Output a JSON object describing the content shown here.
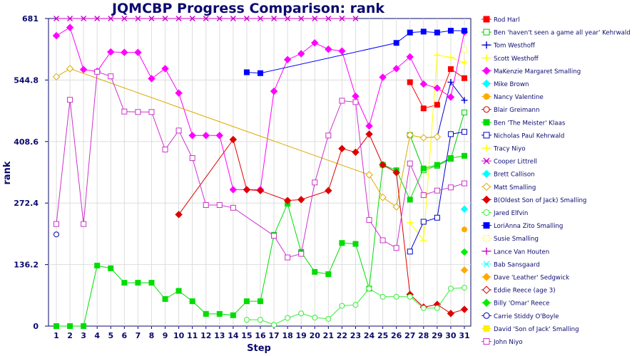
{
  "chart_data": {
    "type": "line",
    "title": "JQMCBP Progress Comparison: rank",
    "xlabel": "Step",
    "ylabel": "rank",
    "x": [
      1,
      2,
      3,
      4,
      5,
      6,
      7,
      8,
      9,
      10,
      11,
      12,
      13,
      14,
      15,
      16,
      17,
      18,
      19,
      20,
      21,
      22,
      23,
      24,
      25,
      26,
      27,
      28,
      29,
      30,
      31
    ],
    "x_ticks": [
      "1",
      "2",
      "3",
      "4",
      "5",
      "6",
      "7",
      "8",
      "9",
      "10",
      "11",
      "12",
      "13",
      "14",
      "15",
      "16",
      "17",
      "18",
      "19",
      "20",
      "21",
      "22",
      "23",
      "24",
      "25",
      "26",
      "27",
      "28",
      "29",
      "30",
      "31"
    ],
    "ylim": [
      0,
      681
    ],
    "y_ticks": [
      "0",
      "136.2",
      "272.4",
      "408.6",
      "544.8",
      "681"
    ],
    "grid": true,
    "legend_position": "right",
    "series": [
      {
        "name": "Rod Harl",
        "color": "#ff0000",
        "marker": "square-filled",
        "values": [
          null,
          null,
          null,
          null,
          null,
          null,
          null,
          null,
          null,
          null,
          null,
          null,
          null,
          null,
          null,
          null,
          null,
          null,
          null,
          null,
          null,
          null,
          null,
          null,
          null,
          null,
          540,
          482,
          490,
          569,
          549
        ]
      },
      {
        "name": "Ben 'haven't seen a game all year' Kehrwald",
        "color": "#00cc00",
        "marker": "square-open",
        "values": [
          null,
          null,
          null,
          null,
          null,
          null,
          null,
          null,
          null,
          null,
          null,
          null,
          null,
          null,
          null,
          null,
          null,
          null,
          null,
          null,
          null,
          null,
          null,
          null,
          null,
          null,
          423,
          345,
          355,
          370,
          473
        ]
      },
      {
        "name": "Tom Westhoff",
        "color": "#0000cc",
        "marker": "plus",
        "values": [
          null,
          null,
          null,
          null,
          null,
          null,
          null,
          null,
          null,
          null,
          null,
          null,
          null,
          null,
          null,
          null,
          null,
          null,
          null,
          null,
          null,
          null,
          null,
          null,
          null,
          null,
          null,
          417,
          419,
          540,
          500
        ]
      },
      {
        "name": "Scott Westhoff",
        "color": "#ffff00",
        "marker": "plus",
        "values": [
          null,
          null,
          null,
          null,
          null,
          null,
          null,
          null,
          null,
          null,
          null,
          null,
          null,
          null,
          null,
          null,
          null,
          null,
          null,
          null,
          null,
          null,
          null,
          null,
          null,
          null,
          229,
          190,
          600,
          595,
          583
        ]
      },
      {
        "name": "MaKenzie Margaret Smalling",
        "color": "#ff00ff",
        "marker": "diamond-filled",
        "values": [
          643,
          661,
          568,
          564,
          607,
          606,
          606,
          548,
          570,
          516,
          422,
          422,
          422,
          302,
          302,
          302,
          520,
          590,
          603,
          627,
          613,
          609,
          509,
          443,
          551,
          570,
          596,
          536,
          527,
          507,
          651
        ]
      },
      {
        "name": "Mike Brown",
        "color": "#00ffff",
        "marker": "diamond-filled",
        "values": [
          null,
          null,
          null,
          null,
          null,
          null,
          null,
          null,
          null,
          null,
          null,
          null,
          null,
          null,
          null,
          null,
          null,
          null,
          null,
          null,
          null,
          null,
          null,
          null,
          null,
          null,
          null,
          null,
          null,
          null,
          259
        ]
      },
      {
        "name": "Nancy Valentine",
        "color": "#ffaa00",
        "marker": "circle-filled",
        "values": [
          null,
          null,
          null,
          null,
          null,
          null,
          null,
          null,
          null,
          null,
          null,
          null,
          null,
          null,
          null,
          null,
          null,
          null,
          null,
          null,
          null,
          null,
          null,
          null,
          null,
          null,
          null,
          null,
          null,
          null,
          214
        ]
      },
      {
        "name": "Blair Greimann",
        "color": "#cc0000",
        "marker": "circle-open",
        "values": [
          null,
          null,
          null,
          null,
          null,
          null,
          null,
          null,
          null,
          null,
          null,
          null,
          null,
          null,
          null,
          null,
          null,
          null,
          null,
          null,
          null,
          null,
          null,
          null,
          null,
          null,
          null,
          null,
          null,
          null,
          null
        ]
      },
      {
        "name": "Ben 'The Meister' Klaas",
        "color": "#00dd00",
        "marker": "square-filled",
        "values": [
          0,
          0,
          0,
          134,
          128,
          96,
          96,
          96,
          60,
          78,
          55,
          27,
          27,
          24,
          55,
          55,
          202,
          271,
          164,
          120,
          115,
          184,
          182,
          83,
          357,
          345,
          280,
          349,
          357,
          372,
          377
        ]
      },
      {
        "name": "Nicholas Paul Kehrwald",
        "color": "#0000cc",
        "marker": "square-open",
        "values": [
          null,
          null,
          null,
          null,
          null,
          null,
          null,
          null,
          null,
          null,
          null,
          null,
          null,
          null,
          null,
          null,
          null,
          null,
          null,
          null,
          null,
          null,
          null,
          null,
          null,
          null,
          165,
          231,
          240,
          425,
          430
        ]
      },
      {
        "name": "Tracy Niyo",
        "color": "#ffff00",
        "marker": "plus",
        "values": [
          null,
          null,
          null,
          null,
          null,
          null,
          null,
          null,
          null,
          null,
          null,
          null,
          null,
          null,
          null,
          null,
          null,
          null,
          null,
          null,
          null,
          null,
          null,
          null,
          null,
          null,
          null,
          null,
          null,
          null,
          null
        ]
      },
      {
        "name": "Cooper Littrell",
        "color": "#cc00cc",
        "marker": "cross",
        "values": [
          681,
          681,
          681,
          681,
          681,
          681,
          681,
          681,
          681,
          681,
          681,
          681,
          681,
          681,
          681,
          681,
          681,
          681,
          681,
          681,
          681,
          681,
          681,
          null,
          null,
          null,
          null,
          null,
          null,
          null,
          null
        ]
      },
      {
        "name": "Brett Callison",
        "color": "#00ffff",
        "marker": "diamond-filled",
        "values": [
          null,
          null,
          null,
          null,
          null,
          null,
          null,
          null,
          null,
          null,
          null,
          null,
          null,
          null,
          null,
          null,
          null,
          null,
          null,
          null,
          null,
          null,
          null,
          null,
          null,
          null,
          null,
          null,
          null,
          null,
          null
        ]
      },
      {
        "name": "Matt Smalling",
        "color": "#ddaa00",
        "marker": "diamond-open",
        "values": [
          552,
          570,
          null,
          null,
          null,
          null,
          null,
          null,
          null,
          null,
          null,
          null,
          null,
          null,
          null,
          null,
          null,
          null,
          null,
          null,
          null,
          null,
          null,
          335,
          285,
          264,
          423,
          417,
          419,
          null,
          null
        ]
      },
      {
        "name": "B(Oldest Son of Jack) Smalling",
        "color": "#dd0000",
        "marker": "diamond-filled",
        "values": [
          null,
          null,
          null,
          null,
          null,
          null,
          null,
          null,
          null,
          247,
          null,
          null,
          null,
          413,
          302,
          300,
          null,
          278,
          280,
          null,
          300,
          393,
          385,
          425,
          357,
          340,
          70,
          42,
          48,
          28,
          37
        ]
      },
      {
        "name": "Jared Elfvin",
        "color": "#33ee33",
        "marker": "circle-open",
        "values": [
          null,
          null,
          null,
          null,
          null,
          null,
          null,
          null,
          null,
          null,
          null,
          null,
          null,
          null,
          14,
          14,
          3,
          18,
          28,
          19,
          16,
          45,
          47,
          83,
          65,
          65,
          65,
          40,
          40,
          83,
          85
        ]
      },
      {
        "name": "LoriAnna Zito Smalling",
        "color": "#0000ff",
        "marker": "square-filled",
        "values": [
          null,
          null,
          null,
          null,
          null,
          null,
          null,
          null,
          null,
          null,
          null,
          null,
          null,
          null,
          562,
          560,
          null,
          null,
          null,
          null,
          null,
          null,
          null,
          null,
          null,
          627,
          650,
          652,
          650,
          654,
          654
        ]
      },
      {
        "name": "Susie Smalling",
        "color": "#ffff66",
        "marker": "square-open",
        "values": [
          null,
          null,
          null,
          null,
          null,
          null,
          null,
          null,
          null,
          null,
          null,
          null,
          null,
          null,
          null,
          null,
          null,
          null,
          null,
          null,
          null,
          null,
          null,
          null,
          null,
          null,
          null,
          null,
          null,
          null,
          612
        ]
      },
      {
        "name": "Lance Van Houten",
        "color": "#cc00cc",
        "marker": "plus",
        "values": [
          null,
          null,
          null,
          null,
          null,
          null,
          null,
          null,
          null,
          null,
          null,
          null,
          null,
          null,
          null,
          null,
          null,
          null,
          null,
          null,
          null,
          null,
          null,
          null,
          null,
          null,
          null,
          null,
          null,
          null,
          null
        ]
      },
      {
        "name": "Bab Sansgaard",
        "color": "#33ffff",
        "marker": "cross",
        "values": [
          null,
          null,
          null,
          null,
          null,
          null,
          null,
          null,
          null,
          null,
          null,
          null,
          null,
          null,
          null,
          null,
          null,
          null,
          null,
          null,
          null,
          null,
          null,
          null,
          null,
          null,
          null,
          null,
          null,
          null,
          null
        ]
      },
      {
        "name": "Dave 'Leather' Sedgwick",
        "color": "#ffaa00",
        "marker": "diamond-filled",
        "values": [
          null,
          null,
          null,
          null,
          null,
          null,
          null,
          null,
          null,
          null,
          null,
          null,
          null,
          null,
          null,
          null,
          null,
          null,
          null,
          null,
          null,
          null,
          null,
          null,
          null,
          null,
          null,
          null,
          null,
          null,
          124
        ]
      },
      {
        "name": "Eddie Reece (age 3)",
        "color": "#cc0000",
        "marker": "diamond-open",
        "values": [
          null,
          null,
          null,
          null,
          null,
          null,
          null,
          null,
          null,
          null,
          null,
          null,
          null,
          null,
          null,
          null,
          null,
          null,
          null,
          null,
          null,
          null,
          null,
          null,
          null,
          null,
          null,
          null,
          null,
          null,
          null
        ]
      },
      {
        "name": "Billy 'Omar' Reece",
        "color": "#00ee00",
        "marker": "diamond-filled",
        "values": [
          null,
          null,
          null,
          null,
          null,
          null,
          null,
          null,
          null,
          null,
          null,
          null,
          null,
          null,
          null,
          null,
          null,
          null,
          null,
          null,
          null,
          null,
          null,
          null,
          null,
          null,
          null,
          null,
          null,
          null,
          164
        ]
      },
      {
        "name": "Carrie Stiddy O'Boyle",
        "color": "#0000aa",
        "marker": "circle-open",
        "values": [
          203,
          null,
          null,
          null,
          null,
          null,
          null,
          null,
          null,
          null,
          null,
          null,
          null,
          null,
          null,
          null,
          null,
          null,
          null,
          null,
          null,
          null,
          null,
          null,
          null,
          null,
          null,
          null,
          null,
          null,
          null
        ]
      },
      {
        "name": "David 'Son of Jack' Smalling",
        "color": "#ffee00",
        "marker": "square-filled",
        "values": [
          null,
          null,
          null,
          null,
          null,
          null,
          null,
          null,
          null,
          null,
          null,
          null,
          null,
          null,
          null,
          null,
          null,
          null,
          null,
          null,
          null,
          null,
          null,
          null,
          null,
          null,
          null,
          null,
          null,
          null,
          null
        ]
      },
      {
        "name": "John Niyo",
        "color": "#cc33cc",
        "marker": "square-open",
        "values": [
          226,
          501,
          226,
          563,
          553,
          475,
          474,
          474,
          391,
          433,
          372,
          268,
          268,
          262,
          null,
          null,
          200,
          152,
          160,
          318,
          422,
          499,
          496,
          235,
          190,
          173,
          360,
          290,
          300,
          307,
          316
        ]
      }
    ]
  }
}
